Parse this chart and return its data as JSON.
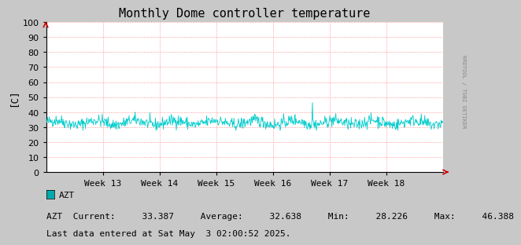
{
  "title": "Monthly Dome controller temperature",
  "ylabel": "[C]",
  "right_label": "RRDTOOL / TOBI OETIKER",
  "ylim": [
    0,
    100
  ],
  "yticks": [
    0,
    10,
    20,
    30,
    40,
    50,
    60,
    70,
    80,
    90,
    100
  ],
  "week_labels": [
    "Week 13",
    "Week 14",
    "Week 15",
    "Week 16",
    "Week 17",
    "Week 18"
  ],
  "line_color": "#00cccc",
  "grid_color": "#ff8080",
  "bg_color": "#c8c8c8",
  "plot_bg_color": "#ffffff",
  "legend_label": "AZT",
  "legend_color": "#00aaaa",
  "stats_text": "AZT  Current:     33.387     Average:     32.638     Min:     28.226     Max:     46.388",
  "last_data_line": "Last data entered at Sat May  3 02:00:52 2025.",
  "title_fontsize": 11,
  "axis_fontsize": 8,
  "stats_fontsize": 8,
  "arrow_color": "#cc0000",
  "avg_value": 32.638,
  "min_value": 28.226,
  "max_value": 46.388,
  "current_value": 33.387,
  "num_points": 800,
  "seed": 42
}
